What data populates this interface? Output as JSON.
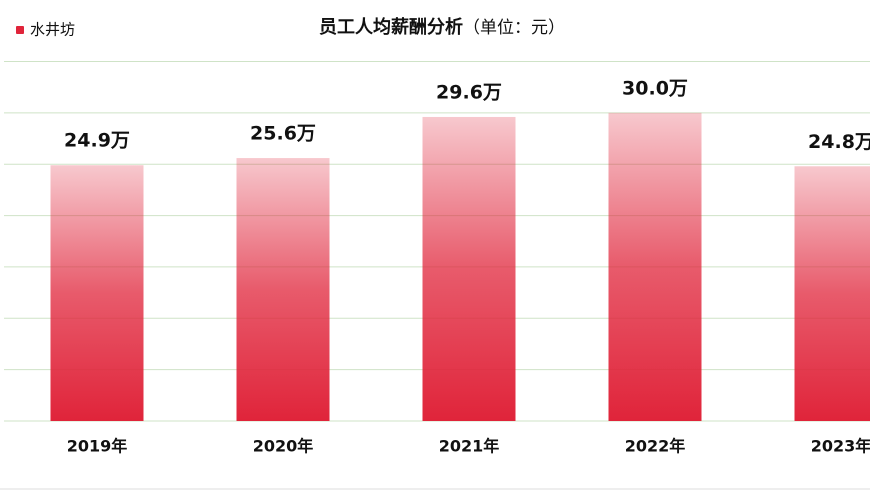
{
  "chart_data": {
    "type": "bar",
    "title": "员工人均薪酬分析",
    "subtitle": "（单位：元）",
    "categories": [
      "2019年",
      "2020年",
      "2021年",
      "2022年",
      "2023年"
    ],
    "series": [
      {
        "name": "水井坊",
        "color": "#e0243a",
        "values": [
          24.9,
          25.6,
          29.6,
          30.0,
          24.8
        ],
        "value_labels": [
          "24.9万",
          "25.6万",
          "29.6万",
          "30.0万",
          "24.8万"
        ]
      }
    ],
    "ylim": [
      0,
      35
    ],
    "yticks": [
      0,
      5,
      10,
      15,
      20,
      25,
      30,
      35
    ],
    "grid": true,
    "legend": "top-left"
  }
}
